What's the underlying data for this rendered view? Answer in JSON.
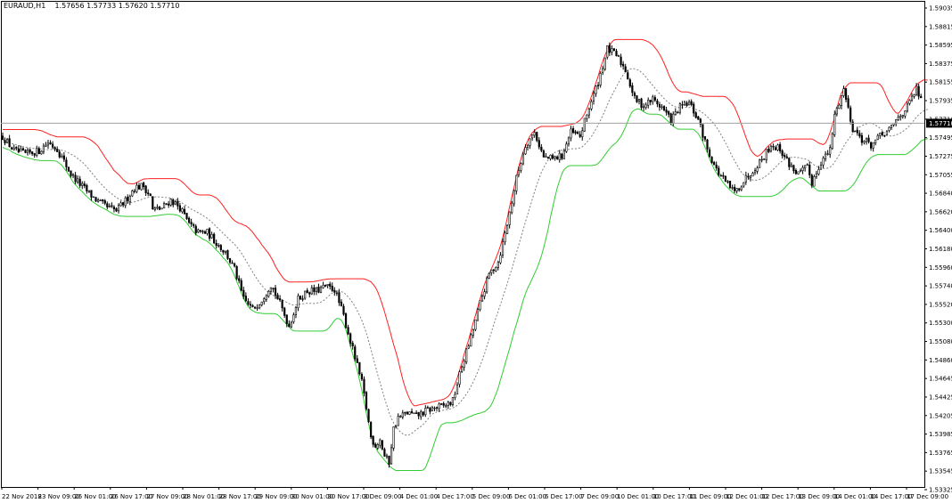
{
  "header": {
    "symbol_timeframe": "EURAUD,H1",
    "ohlc": "1.57656 1.57733 1.57620 1.57710"
  },
  "colors": {
    "background": "#ffffff",
    "candles": "#000000",
    "upper_band": "#ff2020",
    "lower_band": "#32cd32",
    "middle_band": "#808080",
    "bid_line": "#a0a0a0",
    "price_tag_bg": "#000000",
    "price_tag_text": "#ffffff"
  },
  "chart_data": {
    "type": "candlestick",
    "symbol": "EURAUD",
    "timeframe": "H1",
    "current_price": "1.57710",
    "ylim": [
      1.5332,
      1.5909
    ],
    "y_ticks": [
      "1.59035",
      "1.58815",
      "1.58595",
      "1.58375",
      "1.58155",
      "1.57935",
      "1.57710",
      "1.57495",
      "1.57275",
      "1.57055",
      "1.56840",
      "1.56620",
      "1.56400",
      "1.56180",
      "1.55960",
      "1.55740",
      "1.55520",
      "1.55300",
      "1.55080",
      "1.54860",
      "1.54645",
      "1.54425",
      "1.54205",
      "1.53985",
      "1.53765",
      "1.53545",
      "1.53325"
    ],
    "x_ticks": [
      "22 Nov 2018",
      "23 Nov 09:00",
      "26 Nov 01:00",
      "26 Nov 17:00",
      "27 Nov 09:00",
      "28 Nov 01:00",
      "28 Nov 17:00",
      "29 Nov 09:00",
      "30 Nov 01:00",
      "30 Nov 17:00",
      "3 Dec 09:00",
      "4 Dec 01:00",
      "4 Dec 17:00",
      "5 Dec 09:00",
      "6 Dec 01:00",
      "6 Dec 17:00",
      "7 Dec 09:00",
      "10 Dec 01:00",
      "10 Dec 17:00",
      "11 Dec 09:00",
      "12 Dec 01:00",
      "12 Dec 17:00",
      "13 Dec 09:00",
      "14 Dec 01:00",
      "14 Dec 17:00",
      "17 Dec 09:00"
    ],
    "price_path": [
      [
        0,
        1.5755
      ],
      [
        5,
        1.5738
      ],
      [
        10,
        1.5734
      ],
      [
        16,
        1.5738
      ],
      [
        20,
        1.5748
      ],
      [
        24,
        1.574
      ],
      [
        30,
        1.571
      ],
      [
        34,
        1.5698
      ],
      [
        38,
        1.5687
      ],
      [
        42,
        1.5677
      ],
      [
        46,
        1.567
      ],
      [
        50,
        1.5666
      ],
      [
        54,
        1.5678
      ],
      [
        58,
        1.5694
      ],
      [
        62,
        1.5696
      ],
      [
        65,
        1.5683
      ],
      [
        66,
        1.5667
      ],
      [
        70,
        1.5669
      ],
      [
        74,
        1.5679
      ],
      [
        78,
        1.567
      ],
      [
        82,
        1.565
      ],
      [
        86,
        1.564
      ],
      [
        90,
        1.564
      ],
      [
        94,
        1.5628
      ],
      [
        98,
        1.5616
      ],
      [
        102,
        1.5596
      ],
      [
        106,
        1.556
      ],
      [
        110,
        1.5548
      ],
      [
        114,
        1.556
      ],
      [
        118,
        1.5578
      ],
      [
        122,
        1.5555
      ],
      [
        126,
        1.5528
      ],
      [
        130,
        1.556
      ],
      [
        134,
        1.557
      ],
      [
        138,
        1.557
      ],
      [
        142,
        1.5575
      ],
      [
        146,
        1.5572
      ],
      [
        150,
        1.554
      ],
      [
        154,
        1.55
      ],
      [
        158,
        1.546
      ],
      [
        160,
        1.543
      ],
      [
        162,
        1.5395
      ],
      [
        164,
        1.5385
      ],
      [
        166,
        1.5392
      ],
      [
        168,
        1.5372
      ],
      [
        170,
        1.5365
      ],
      [
        172,
        1.5405
      ],
      [
        174,
        1.5418
      ],
      [
        178,
        1.5424
      ],
      [
        182,
        1.542
      ],
      [
        186,
        1.5426
      ],
      [
        190,
        1.543
      ],
      [
        194,
        1.5432
      ],
      [
        198,
        1.5438
      ],
      [
        202,
        1.548
      ],
      [
        206,
        1.5514
      ],
      [
        210,
        1.5555
      ],
      [
        214,
        1.559
      ],
      [
        218,
        1.5605
      ],
      [
        222,
        1.565
      ],
      [
        226,
        1.5705
      ],
      [
        230,
        1.5745
      ],
      [
        234,
        1.576
      ],
      [
        238,
        1.573
      ],
      [
        242,
        1.5728
      ],
      [
        246,
        1.5732
      ],
      [
        250,
        1.576
      ],
      [
        254,
        1.5755
      ],
      [
        258,
        1.579
      ],
      [
        262,
        1.582
      ],
      [
        266,
        1.586
      ],
      [
        270,
        1.5852
      ],
      [
        274,
        1.5835
      ],
      [
        278,
        1.58
      ],
      [
        282,
        1.5792
      ],
      [
        286,
        1.58
      ],
      [
        290,
        1.579
      ],
      [
        294,
        1.5775
      ],
      [
        298,
        1.579
      ],
      [
        302,
        1.5795
      ],
      [
        306,
        1.5775
      ],
      [
        310,
        1.574
      ],
      [
        314,
        1.5715
      ],
      [
        318,
        1.57
      ],
      [
        322,
        1.5688
      ],
      [
        326,
        1.5702
      ],
      [
        330,
        1.5715
      ],
      [
        334,
        1.5728
      ],
      [
        338,
        1.5745
      ],
      [
        342,
        1.574
      ],
      [
        346,
        1.5722
      ],
      [
        350,
        1.571
      ],
      [
        354,
        1.5718
      ],
      [
        356,
        1.57
      ],
      [
        360,
        1.5725
      ],
      [
        364,
        1.5738
      ],
      [
        366,
        1.578
      ],
      [
        370,
        1.5812
      ],
      [
        374,
        1.5765
      ],
      [
        378,
        1.5752
      ],
      [
        382,
        1.5745
      ],
      [
        386,
        1.5755
      ],
      [
        390,
        1.5762
      ],
      [
        394,
        1.5778
      ],
      [
        398,
        1.579
      ],
      [
        402,
        1.5812
      ],
      [
        405,
        1.5792
      ],
      [
        407,
        1.5771
      ]
    ]
  }
}
